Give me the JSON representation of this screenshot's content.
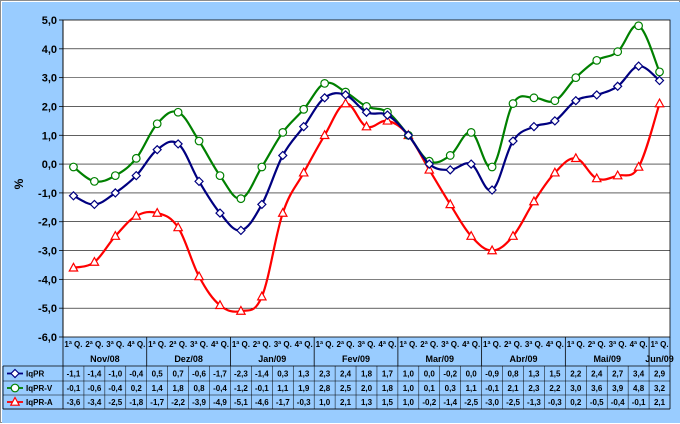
{
  "chart_data": {
    "type": "line",
    "ylabel": "%",
    "ylim": [
      -6,
      5
    ],
    "yticks": [
      "5,0",
      "4,0",
      "3,0",
      "2,0",
      "1,0",
      "0,0",
      "-1,0",
      "-2,0",
      "-3,0",
      "-4,0",
      "-5,0",
      "-6,0"
    ],
    "ytick_values": [
      5,
      4,
      3,
      2,
      1,
      0,
      -1,
      -2,
      -3,
      -4,
      -5,
      -6
    ],
    "grid": true,
    "background": "#99ccff",
    "plot_background": "#ffffff",
    "x_quarter_labels": [
      "1ª Q.",
      "2ª Q.",
      "3ª Q.",
      "4ª Q.",
      "1ª Q.",
      "2ª Q.",
      "3ª Q.",
      "4ª Q.",
      "1ª Q.",
      "2ª Q.",
      "3ª Q.",
      "4ª Q.",
      "1ª Q.",
      "2ª Q.",
      "3ª Q.",
      "4ª Q.",
      "1ª Q.",
      "2ª Q.",
      "3ª Q.",
      "4ª Q.",
      "1ª Q.",
      "2ª Q.",
      "3ª Q.",
      "4ª Q.",
      "1ª Q.",
      "2ª Q.",
      "3ª Q.",
      "4ª Q.",
      "1ª Q."
    ],
    "months": [
      {
        "label": "Nov/08",
        "start": 0,
        "count": 4
      },
      {
        "label": "Dez/08",
        "start": 4,
        "count": 4
      },
      {
        "label": "Jan/09",
        "start": 8,
        "count": 4
      },
      {
        "label": "Fev/09",
        "start": 12,
        "count": 4
      },
      {
        "label": "Mar/09",
        "start": 16,
        "count": 4
      },
      {
        "label": "Abr/09",
        "start": 20,
        "count": 4
      },
      {
        "label": "Mai/09",
        "start": 24,
        "count": 4
      },
      {
        "label": "Jun/09",
        "start": 28,
        "count": 1
      }
    ],
    "series": [
      {
        "name": "IqPR",
        "color": "#000080",
        "marker": "diamond",
        "values": [
          -1.1,
          -1.4,
          -1.0,
          -0.4,
          0.5,
          0.7,
          -0.6,
          -1.7,
          -2.3,
          -1.4,
          0.3,
          1.3,
          2.3,
          2.4,
          1.8,
          1.7,
          1.0,
          0.0,
          -0.2,
          0.0,
          -0.9,
          0.8,
          1.3,
          1.5,
          2.2,
          2.4,
          2.7,
          3.4,
          2.9
        ],
        "labels": [
          "-1,1",
          "-1,4",
          "-1,0",
          "-0,4",
          "0,5",
          "0,7",
          "-0,6",
          "-1,7",
          "-2,3",
          "-1,4",
          "0,3",
          "1,3",
          "2,3",
          "2,4",
          "1,8",
          "1,7",
          "1,0",
          "0,0",
          "-0,2",
          "0,0",
          "-0,9",
          "0,8",
          "1,3",
          "1,5",
          "2,2",
          "2,4",
          "2,7",
          "3,4",
          "2,9"
        ]
      },
      {
        "name": "IqPR-V",
        "color": "#008000",
        "marker": "circle",
        "values": [
          -0.1,
          -0.6,
          -0.4,
          0.2,
          1.4,
          1.8,
          0.8,
          -0.4,
          -1.2,
          -0.1,
          1.1,
          1.9,
          2.8,
          2.5,
          2.0,
          1.8,
          1.0,
          0.1,
          0.3,
          1.1,
          -0.1,
          2.1,
          2.3,
          2.2,
          3.0,
          3.6,
          3.9,
          4.8,
          3.2
        ],
        "labels": [
          "-0,1",
          "-0,6",
          "-0,4",
          "0,2",
          "1,4",
          "1,8",
          "0,8",
          "-0,4",
          "-1,2",
          "-0,1",
          "1,1",
          "1,9",
          "2,8",
          "2,5",
          "2,0",
          "1,8",
          "1,0",
          "0,1",
          "0,3",
          "1,1",
          "-0,1",
          "2,1",
          "2,3",
          "2,2",
          "3,0",
          "3,6",
          "3,9",
          "4,8",
          "3,2"
        ]
      },
      {
        "name": "IqPR-A",
        "color": "#ff0000",
        "marker": "triangle",
        "values": [
          -3.6,
          -3.4,
          -2.5,
          -1.8,
          -1.7,
          -2.2,
          -3.9,
          -4.9,
          -5.1,
          -4.6,
          -1.7,
          -0.3,
          1.0,
          2.1,
          1.3,
          1.5,
          1.0,
          -0.2,
          -1.4,
          -2.5,
          -3.0,
          -2.5,
          -1.3,
          -0.3,
          0.2,
          -0.5,
          -0.4,
          -0.1,
          2.1
        ],
        "labels": [
          "-3,6",
          "-3,4",
          "-2,5",
          "-1,8",
          "-1,7",
          "-2,2",
          "-3,9",
          "-4,9",
          "-5,1",
          "-4,6",
          "-1,7",
          "-0,3",
          "1,0",
          "2,1",
          "1,3",
          "1,5",
          "1,0",
          "-0,2",
          "-1,4",
          "-2,5",
          "-3,0",
          "-2,5",
          "-1,3",
          "-0,3",
          "0,2",
          "-0,5",
          "-0,4",
          "-0,1",
          "2,1"
        ]
      }
    ]
  }
}
